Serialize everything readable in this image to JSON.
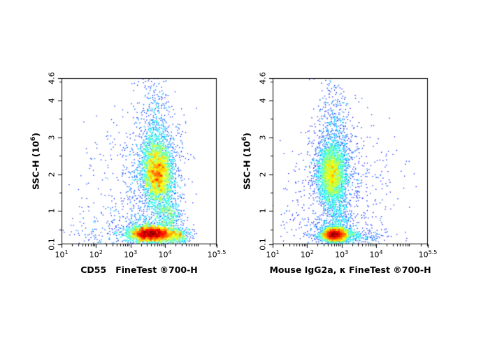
{
  "page": {
    "background": "#ffffff"
  },
  "chart_data": [
    {
      "type": "scatter",
      "subtype": "flow-cytometry-density-dot-plot",
      "colormap": "jet",
      "grid": false,
      "legend": "none",
      "xlabel": "CD55   FineTest ®700-H",
      "ylabel_prefix": "SSC-H (10",
      "ylabel_exp": "6",
      "ylabel_suffix": ")",
      "x_scale": "log",
      "x_log_range": [
        1,
        5.5
      ],
      "y_range": [
        0.1,
        4.6
      ],
      "x_tick_base": "10",
      "x_ticks": [
        {
          "exp": "1",
          "pos": 1
        },
        {
          "exp": "2",
          "pos": 2
        },
        {
          "exp": "3",
          "pos": 3
        },
        {
          "exp": "4",
          "pos": 4
        },
        {
          "exp": "5.5",
          "pos": 5.5
        }
      ],
      "y_ticks": [
        {
          "label": "0.1",
          "value": 0.1
        },
        {
          "label": "1",
          "value": 1
        },
        {
          "label": "2",
          "value": 2
        },
        {
          "label": "3",
          "value": 3
        },
        {
          "label": "4",
          "value": 4
        },
        {
          "label": "4.6",
          "value": 4.6
        }
      ],
      "populations": [
        {
          "name": "ssc-mid-core",
          "n": 3000,
          "cx": 3.78,
          "cy": 2.05,
          "sx": 0.21,
          "sy": 0.42
        },
        {
          "name": "ssc-mid-halo",
          "n": 800,
          "cx": 3.74,
          "cy": 2.1,
          "sx": 0.42,
          "sy": 0.8
        },
        {
          "name": "debris-core",
          "n": 3200,
          "cx": 3.6,
          "cy": 0.38,
          "sx": 0.3,
          "sy": 0.1
        },
        {
          "name": "debris-halo",
          "n": 650,
          "cx": 3.62,
          "cy": 0.42,
          "sx": 0.5,
          "sy": 0.22
        },
        {
          "name": "debris-right",
          "n": 420,
          "cx": 4.3,
          "cy": 0.32,
          "sx": 0.22,
          "sy": 0.09
        },
        {
          "name": "bridge-cluster",
          "n": 380,
          "cx": 4.1,
          "cy": 0.95,
          "sx": 0.16,
          "sy": 0.24
        },
        {
          "name": "upper-scatter",
          "n": 430,
          "cx": 3.7,
          "cy": 3.2,
          "sx": 0.24,
          "sy": 0.8
        },
        {
          "name": "background",
          "n": 320,
          "cx": 3.0,
          "cy": 1.6,
          "sx": 0.75,
          "sy": 1.1
        },
        {
          "name": "background-low",
          "n": 140,
          "cx": 2.3,
          "cy": 0.4,
          "sx": 0.7,
          "sy": 0.3
        }
      ]
    },
    {
      "type": "scatter",
      "subtype": "flow-cytometry-density-dot-plot",
      "colormap": "jet",
      "grid": false,
      "legend": "none",
      "xlabel": "Mouse IgG2a, κ FineTest ®700-H",
      "ylabel_prefix": "SSC-H (10",
      "ylabel_exp": "6",
      "ylabel_suffix": ")",
      "x_scale": "log",
      "x_log_range": [
        1,
        5.5
      ],
      "y_range": [
        0.1,
        4.6
      ],
      "x_tick_base": "10",
      "x_ticks": [
        {
          "exp": "1",
          "pos": 1
        },
        {
          "exp": "2",
          "pos": 2
        },
        {
          "exp": "3",
          "pos": 3
        },
        {
          "exp": "4",
          "pos": 4
        },
        {
          "exp": "5.5",
          "pos": 5.5
        }
      ],
      "y_ticks": [
        {
          "label": "0.1",
          "value": 0.1
        },
        {
          "label": "1",
          "value": 1
        },
        {
          "label": "2",
          "value": 2
        },
        {
          "label": "3",
          "value": 3
        },
        {
          "label": "4",
          "value": 4
        },
        {
          "label": "4.6",
          "value": 4.6
        }
      ],
      "populations": [
        {
          "name": "ssc-mid-core",
          "n": 2600,
          "cx": 2.72,
          "cy": 2.0,
          "sx": 0.2,
          "sy": 0.4
        },
        {
          "name": "ssc-mid-halo",
          "n": 700,
          "cx": 2.75,
          "cy": 2.05,
          "sx": 0.4,
          "sy": 0.75
        },
        {
          "name": "debris-core",
          "n": 2800,
          "cx": 2.8,
          "cy": 0.36,
          "sx": 0.18,
          "sy": 0.09
        },
        {
          "name": "debris-halo",
          "n": 550,
          "cx": 2.82,
          "cy": 0.4,
          "sx": 0.35,
          "sy": 0.2
        },
        {
          "name": "upper-scatter",
          "n": 420,
          "cx": 2.78,
          "cy": 3.2,
          "sx": 0.26,
          "sy": 0.8
        },
        {
          "name": "bridge-cluster",
          "n": 260,
          "cx": 2.88,
          "cy": 1.0,
          "sx": 0.17,
          "sy": 0.3
        },
        {
          "name": "background-right",
          "n": 300,
          "cx": 3.5,
          "cy": 1.4,
          "sx": 0.65,
          "sy": 1.0
        },
        {
          "name": "debris-tail",
          "n": 180,
          "cx": 3.4,
          "cy": 0.3,
          "sx": 0.45,
          "sy": 0.09
        },
        {
          "name": "background-left",
          "n": 110,
          "cx": 1.9,
          "cy": 1.0,
          "sx": 0.5,
          "sy": 0.8
        }
      ]
    }
  ]
}
